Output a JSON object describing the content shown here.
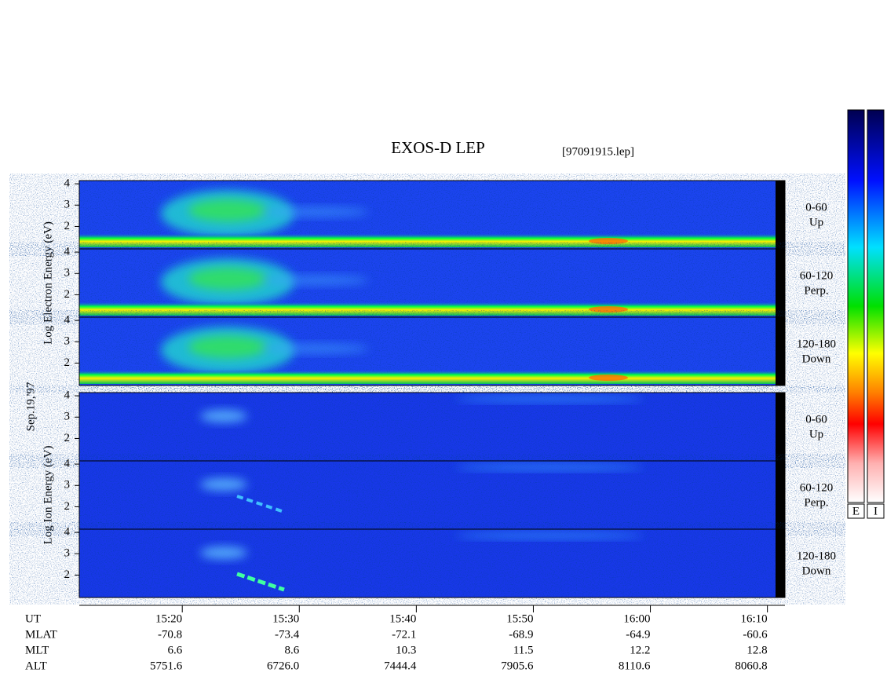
{
  "title": "EXOS-D LEP",
  "file": "[97091915.lep]",
  "date": "Sep.19,'97",
  "chart_data": {
    "type": "spectrogram",
    "xlim": [
      11.2,
      71.5
    ],
    "xticks": [
      {
        "value": 20,
        "label": "15:20"
      },
      {
        "value": 30,
        "label": "15:30"
      },
      {
        "value": 40,
        "label": "15:40"
      },
      {
        "value": 50,
        "label": "15:50"
      },
      {
        "value": 60,
        "label": "16:00"
      },
      {
        "value": 70,
        "label": "16:10"
      }
    ],
    "groups": [
      {
        "ylabel": "Log  Electron  Energy (eV)",
        "panels": [
          {
            "pitch": "0-60",
            "direction": "Up",
            "ylim": [
              0.95,
              4.15
            ],
            "yticks": [
              2,
              3,
              4
            ]
          },
          {
            "pitch": "60-120",
            "direction": "Perp.",
            "ylim": [
              0.95,
              4.15
            ],
            "yticks": [
              2,
              3,
              4
            ]
          },
          {
            "pitch": "120-180",
            "direction": "Down",
            "ylim": [
              0.95,
              4.15
            ],
            "yticks": [
              2,
              3,
              4
            ]
          }
        ]
      },
      {
        "ylabel": "Log  Ion  Energy (eV)",
        "panels": [
          {
            "pitch": "0-60",
            "direction": "Up",
            "ylim": [
              0.95,
              4.15
            ],
            "yticks": [
              2,
              3,
              4
            ]
          },
          {
            "pitch": "60-120",
            "direction": "Perp.",
            "ylim": [
              0.95,
              4.15
            ],
            "yticks": [
              2,
              3,
              4
            ]
          },
          {
            "pitch": "120-180",
            "direction": "Down",
            "ylim": [
              0.95,
              4.15
            ],
            "yticks": [
              2,
              3,
              4
            ]
          }
        ]
      }
    ],
    "colorbars": [
      "E",
      "I"
    ]
  },
  "ephemeris": [
    {
      "label": "UT"
    },
    {
      "label": "MLAT",
      "values": [
        "-70.8",
        "-73.4",
        "-72.1",
        "-68.9",
        "-64.9",
        "-60.6"
      ]
    },
    {
      "label": "MLT",
      "values": [
        "6.6",
        "8.6",
        "10.3",
        "11.5",
        "12.2",
        "12.8"
      ]
    },
    {
      "label": "ALT",
      "values": [
        "5751.6",
        "6726.0",
        "7444.4",
        "7905.6",
        "8110.6",
        "8060.8"
      ]
    }
  ]
}
